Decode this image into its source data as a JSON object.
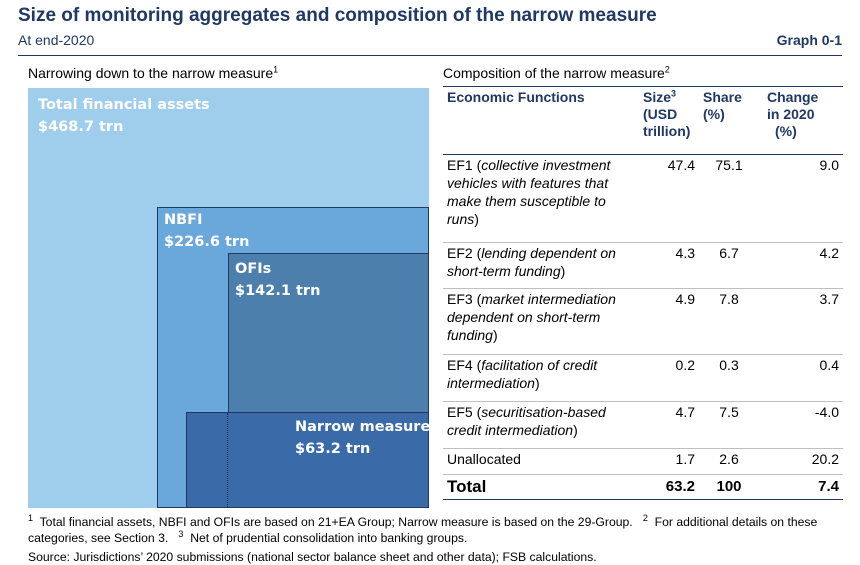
{
  "header": {
    "title": "Size of monitoring aggregates and composition of the narrow measure",
    "subtitle": "At end-2020",
    "graph_number": "Graph 0-1"
  },
  "left_panel": {
    "title": "Narrowing down to the narrow measure",
    "title_sup": "1"
  },
  "right_panel": {
    "title": "Composition of the narrow measure",
    "title_sup": "2"
  },
  "chart_data": [
    {
      "type": "nested-area",
      "title": "Narrowing down to the narrow measure",
      "series": [
        {
          "name": "Total financial assets",
          "value_label": "$468.7 trn",
          "value": 468.7,
          "color": "#9fcdec"
        },
        {
          "name": "NBFI",
          "value_label": "$226.6 trn",
          "value": 226.6,
          "color": "#6aa8db"
        },
        {
          "name": "OFIs",
          "value_label": "$142.1 trn",
          "value": 142.1,
          "color": "#4d7fad"
        },
        {
          "name": "Narrow measure",
          "value_label": "$63.2 trn",
          "value": 63.2,
          "color": "#3a6aa8"
        }
      ]
    },
    {
      "type": "table",
      "title": "Composition of the narrow measure",
      "columns": {
        "func": "Economic Functions",
        "size_line1": "Size",
        "size_sup": "3",
        "size_line2": "(USD",
        "size_line3": "trillion)",
        "share_line1": "Share",
        "share_line2": "(%)",
        "change_line1": "Change",
        "change_line2": "in 2020",
        "change_line3": "(%)"
      },
      "rows": [
        {
          "code": "EF1",
          "desc": "collective investment vehicles with features that make them susceptible to runs",
          "size": "47.4",
          "share": "75.1",
          "change": "9.0"
        },
        {
          "code": "EF2",
          "desc": "lending dependent on short-term funding",
          "size": "4.3",
          "share": "6.7",
          "change": "4.2"
        },
        {
          "code": "EF3",
          "desc": "market intermediation dependent on short-term funding",
          "size": "4.9",
          "share": "7.8",
          "change": "3.7"
        },
        {
          "code": "EF4",
          "desc": "facilitation of credit intermediation",
          "size": "0.2",
          "share": "0.3",
          "change": "0.4"
        },
        {
          "code": "EF5",
          "desc": "securitisation-based credit intermediation",
          "size": "4.7",
          "share": "7.5",
          "change": "-4.0"
        }
      ],
      "unallocated": {
        "label": "Unallocated",
        "size": "1.7",
        "share": "2.6",
        "change": "20.2"
      },
      "total": {
        "label": "Total",
        "size": "63.2",
        "share": "100",
        "change": "7.4"
      }
    }
  ],
  "footnotes": {
    "fn1_mark": "1",
    "fn1_text": "Total financial assets, NBFI and OFIs are based on 21+EA Group; Narrow measure is based on the 29-Group.",
    "fn2_mark": "2",
    "fn2_text": "For additional details on these categories, see Section 3.",
    "fn3_mark": "3",
    "fn3_text": "Net of prudential consolidation into banking groups.",
    "source": "Source: Jurisdictions’ 2020 submissions (national sector balance sheet and other data); FSB calculations."
  }
}
